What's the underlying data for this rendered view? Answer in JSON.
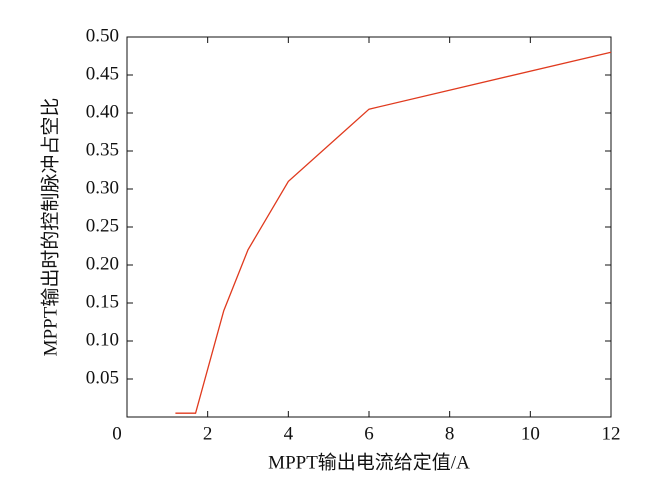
{
  "chart_data": {
    "type": "line",
    "xlabel": "MPPT输出电流给定值/A",
    "ylabel": "MPPT输出时的控制脉冲占空比",
    "series": [
      {
        "color": "#e03a1e",
        "x": [
          1.2,
          1.7,
          2.4,
          3,
          4,
          6,
          12
        ],
        "values": [
          0.005,
          0.005,
          0.14,
          0.22,
          0.31,
          0.405,
          0.48
        ]
      }
    ],
    "xlim": [
      0,
      12
    ],
    "xticks": [
      0,
      2,
      4,
      6,
      8,
      10,
      12
    ],
    "ylim": [
      0,
      0.5
    ],
    "yticks": [
      0.05,
      {
        "value": 0.1,
        "label": "0.10"
      },
      0.15,
      {
        "value": 0.2,
        "label": "0.20"
      },
      0.25,
      {
        "value": 0.3,
        "label": "0.30"
      },
      0.35,
      {
        "value": 0.4,
        "label": "0.40"
      },
      0.45,
      {
        "value": 0.5,
        "label": "0.50"
      }
    ]
  }
}
